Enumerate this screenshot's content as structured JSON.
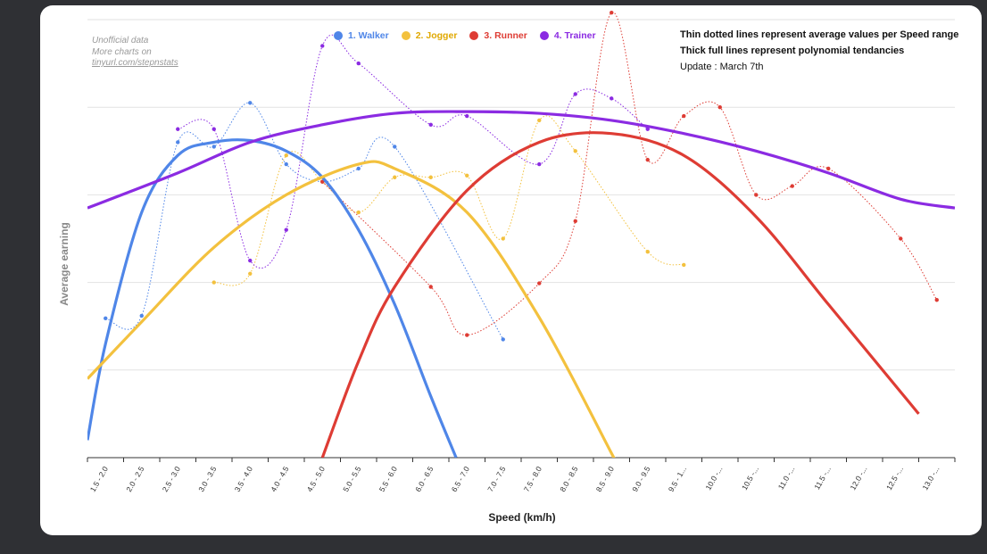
{
  "chart_data": {
    "type": "line",
    "xlabel": "Speed (km/h)",
    "ylabel": "Average earning",
    "categories": [
      "1.5 - 2.0",
      "2.0 - 2.5",
      "2.5 - 3.0",
      "3.0 - 3.5",
      "3.5 - 4.0",
      "4.0 - 4.5",
      "4.5 - 5.0",
      "5.0 - 5.5",
      "5.5 - 6.0",
      "6.0 - 6.5",
      "6.5 - 7.0",
      "7.0 - 7.5",
      "7.5 - 8.0",
      "8.0 - 8.5",
      "8.5 - 9.0",
      "9.0 - 9.5",
      "9.5 - 1...",
      "10.0 -...",
      "10.5 -...",
      "11.0 -...",
      "11.5 -...",
      "12.0 -...",
      "12.5 -...",
      "13.0 -..."
    ],
    "grid": true,
    "legend_position": "top",
    "series": [
      {
        "name": "1. Walker",
        "color": "#4f86e8",
        "values": [
          1.59,
          1.62,
          3.6,
          3.55,
          4.05,
          3.35,
          3.15,
          3.3,
          3.55,
          null,
          null,
          1.35,
          null,
          null,
          null,
          null,
          null,
          null,
          null,
          null,
          null,
          null,
          null,
          null
        ],
        "trend": [
          [
            -0.5,
            0.2
          ],
          [
            0,
            1.3
          ],
          [
            1,
            2.8
          ],
          [
            2,
            3.45
          ],
          [
            3,
            3.6
          ],
          [
            4,
            3.62
          ],
          [
            5,
            3.5
          ],
          [
            6,
            3.2
          ],
          [
            7,
            2.6
          ],
          [
            8,
            1.75
          ],
          [
            9,
            0.7
          ],
          [
            9.7,
            0.0
          ]
        ]
      },
      {
        "name": "2. Jogger",
        "color": "#f3c13e",
        "values": [
          null,
          null,
          null,
          2.0,
          2.1,
          3.45,
          3.15,
          2.8,
          3.2,
          3.2,
          3.22,
          2.5,
          3.85,
          3.5,
          null,
          2.35,
          2.2,
          null,
          null,
          null,
          null,
          null,
          null,
          null
        ],
        "trend": [
          [
            -0.5,
            0.9
          ],
          [
            1,
            1.55
          ],
          [
            3,
            2.4
          ],
          [
            5,
            3.0
          ],
          [
            7,
            3.35
          ],
          [
            8,
            3.3
          ],
          [
            10,
            2.8
          ],
          [
            12,
            1.6
          ],
          [
            14,
            0.05
          ],
          [
            14.05,
            0.0
          ]
        ]
      },
      {
        "name": "3. Runner",
        "color": "#de3c34",
        "values": [
          null,
          null,
          null,
          null,
          null,
          null,
          3.15,
          null,
          null,
          1.95,
          1.4,
          null,
          1.99,
          2.7,
          5.08,
          3.4,
          3.9,
          4.0,
          3.0,
          3.1,
          3.3,
          null,
          2.5,
          1.8
        ],
        "trend": [
          [
            6,
            0.0
          ],
          [
            7,
            1.1
          ],
          [
            8,
            1.95
          ],
          [
            10,
            3.05
          ],
          [
            12,
            3.6
          ],
          [
            14,
            3.7
          ],
          [
            16,
            3.45
          ],
          [
            18,
            2.75
          ],
          [
            20,
            1.75
          ],
          [
            22,
            0.75
          ],
          [
            22.5,
            0.5
          ]
        ]
      },
      {
        "name": "4. Trainer",
        "color": "#8b2be2",
        "values": [
          null,
          null,
          3.75,
          3.75,
          2.25,
          2.6,
          4.7,
          4.5,
          null,
          3.8,
          3.9,
          null,
          3.35,
          4.15,
          4.1,
          3.75,
          null,
          null,
          null,
          null,
          null,
          null,
          null,
          null
        ],
        "trend": [
          [
            -0.5,
            2.85
          ],
          [
            2,
            3.25
          ],
          [
            4,
            3.6
          ],
          [
            6,
            3.8
          ],
          [
            8,
            3.93
          ],
          [
            10,
            3.95
          ],
          [
            12,
            3.93
          ],
          [
            14,
            3.85
          ],
          [
            16,
            3.7
          ],
          [
            18,
            3.5
          ],
          [
            20,
            3.25
          ],
          [
            22,
            2.95
          ],
          [
            23.5,
            2.85
          ]
        ]
      }
    ],
    "ylim": [
      0,
      5
    ]
  },
  "notes": {
    "line1": "Unofficial data",
    "line2": "More charts on",
    "line3": "tinyurl.com/stepnstats"
  },
  "info": {
    "line1": "Thin dotted lines represent average values per Speed range",
    "line2": "Thick full lines represent polynomial tendancies",
    "line3": "Update : March 7th"
  }
}
